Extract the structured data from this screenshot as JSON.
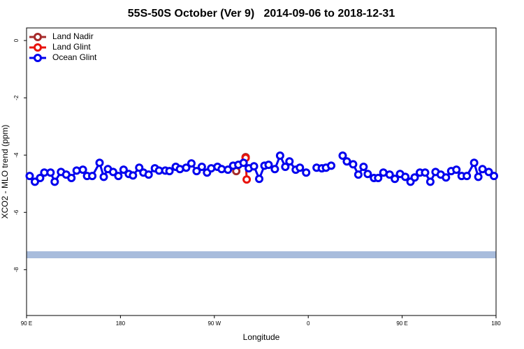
{
  "chart_data": {
    "type": "line",
    "title": "55S-50S October (Ver 9)   2014-09-06 to 2018-12-31",
    "xlabel": "Longitude",
    "ylabel": "XCO2 - MLO trend (ppm)",
    "xlim": [
      90,
      540
    ],
    "ylim": [
      -9.6,
      0.44
    ],
    "xticks": [
      {
        "value": 90,
        "label": "90 E"
      },
      180,
      {
        "value": 270,
        "label": "90 W"
      },
      {
        "value": 360,
        "label": "0"
      },
      {
        "value": 450,
        "label": "90 E"
      },
      {
        "value": 540,
        "label": "180"
      }
    ],
    "yticks": [
      0,
      -2,
      -4,
      -6,
      -8
    ],
    "legend": "upper left",
    "grid": false,
    "series": [
      {
        "name": "Land Nadir",
        "color": "#a52a2a",
        "x": [
          291,
          300
        ],
        "values": [
          -4.56,
          -4.07
        ]
      },
      {
        "name": "Land Glint",
        "color": "#e8120c",
        "x": [
          300,
          301
        ],
        "values": [
          -4.1,
          -4.85
        ]
      },
      {
        "name": "Ocean Glint",
        "color": "#0000ee",
        "x": [
          93,
          98,
          103,
          107,
          113,
          117,
          123,
          128,
          133,
          138,
          144,
          148,
          153,
          160,
          164,
          168,
          173,
          178,
          183,
          188,
          192,
          198,
          202,
          207,
          213,
          217,
          223,
          227,
          233,
          237,
          243,
          248,
          253,
          258,
          263,
          267,
          273,
          277,
          283,
          288,
          293,
          298,
          303,
          308,
          313,
          318,
          322,
          328,
          333,
          338,
          342,
          348,
          352,
          358,
          363,
          368,
          373,
          377,
          382,
          387,
          393,
          397,
          403,
          408,
          413,
          417,
          423,
          427,
          432,
          438,
          443,
          448,
          453,
          458,
          462,
          467,
          472,
          477,
          482,
          487,
          492,
          497,
          502,
          507,
          512,
          519,
          523,
          527,
          533,
          538
        ],
        "values": [
          -4.73,
          -4.93,
          -4.8,
          -4.61,
          -4.61,
          -4.93,
          -4.59,
          -4.68,
          -4.8,
          -4.54,
          -4.51,
          -4.73,
          -4.73,
          -4.27,
          -4.76,
          -4.49,
          -4.59,
          -4.73,
          -4.51,
          -4.66,
          -4.71,
          -4.44,
          -4.61,
          -4.68,
          -4.46,
          -4.54,
          -4.54,
          -4.56,
          -4.41,
          -4.49,
          -4.44,
          -4.29,
          -4.56,
          -4.41,
          -4.61,
          -4.46,
          -4.41,
          -4.49,
          -4.51,
          -4.37,
          -4.34,
          -4.27,
          -4.46,
          -4.39,
          -4.83,
          -4.37,
          -4.34,
          -4.49,
          -4.02,
          -4.41,
          -4.22,
          -4.51,
          -4.44,
          -4.61,
          null,
          -4.44,
          -4.46,
          -4.44,
          -4.37,
          null,
          -4.02,
          -4.22,
          -4.32,
          -4.68,
          -4.41,
          -4.66,
          -4.8,
          -4.8,
          -4.61,
          -4.68,
          -4.83,
          -4.66,
          -4.76,
          -4.93,
          -4.78,
          -4.61,
          -4.61,
          -4.93,
          -4.59,
          -4.68,
          -4.78,
          -4.56,
          -4.51,
          -4.73,
          -4.73,
          -4.27,
          -4.76,
          -4.49,
          -4.59,
          -4.73
        ]
      }
    ]
  }
}
